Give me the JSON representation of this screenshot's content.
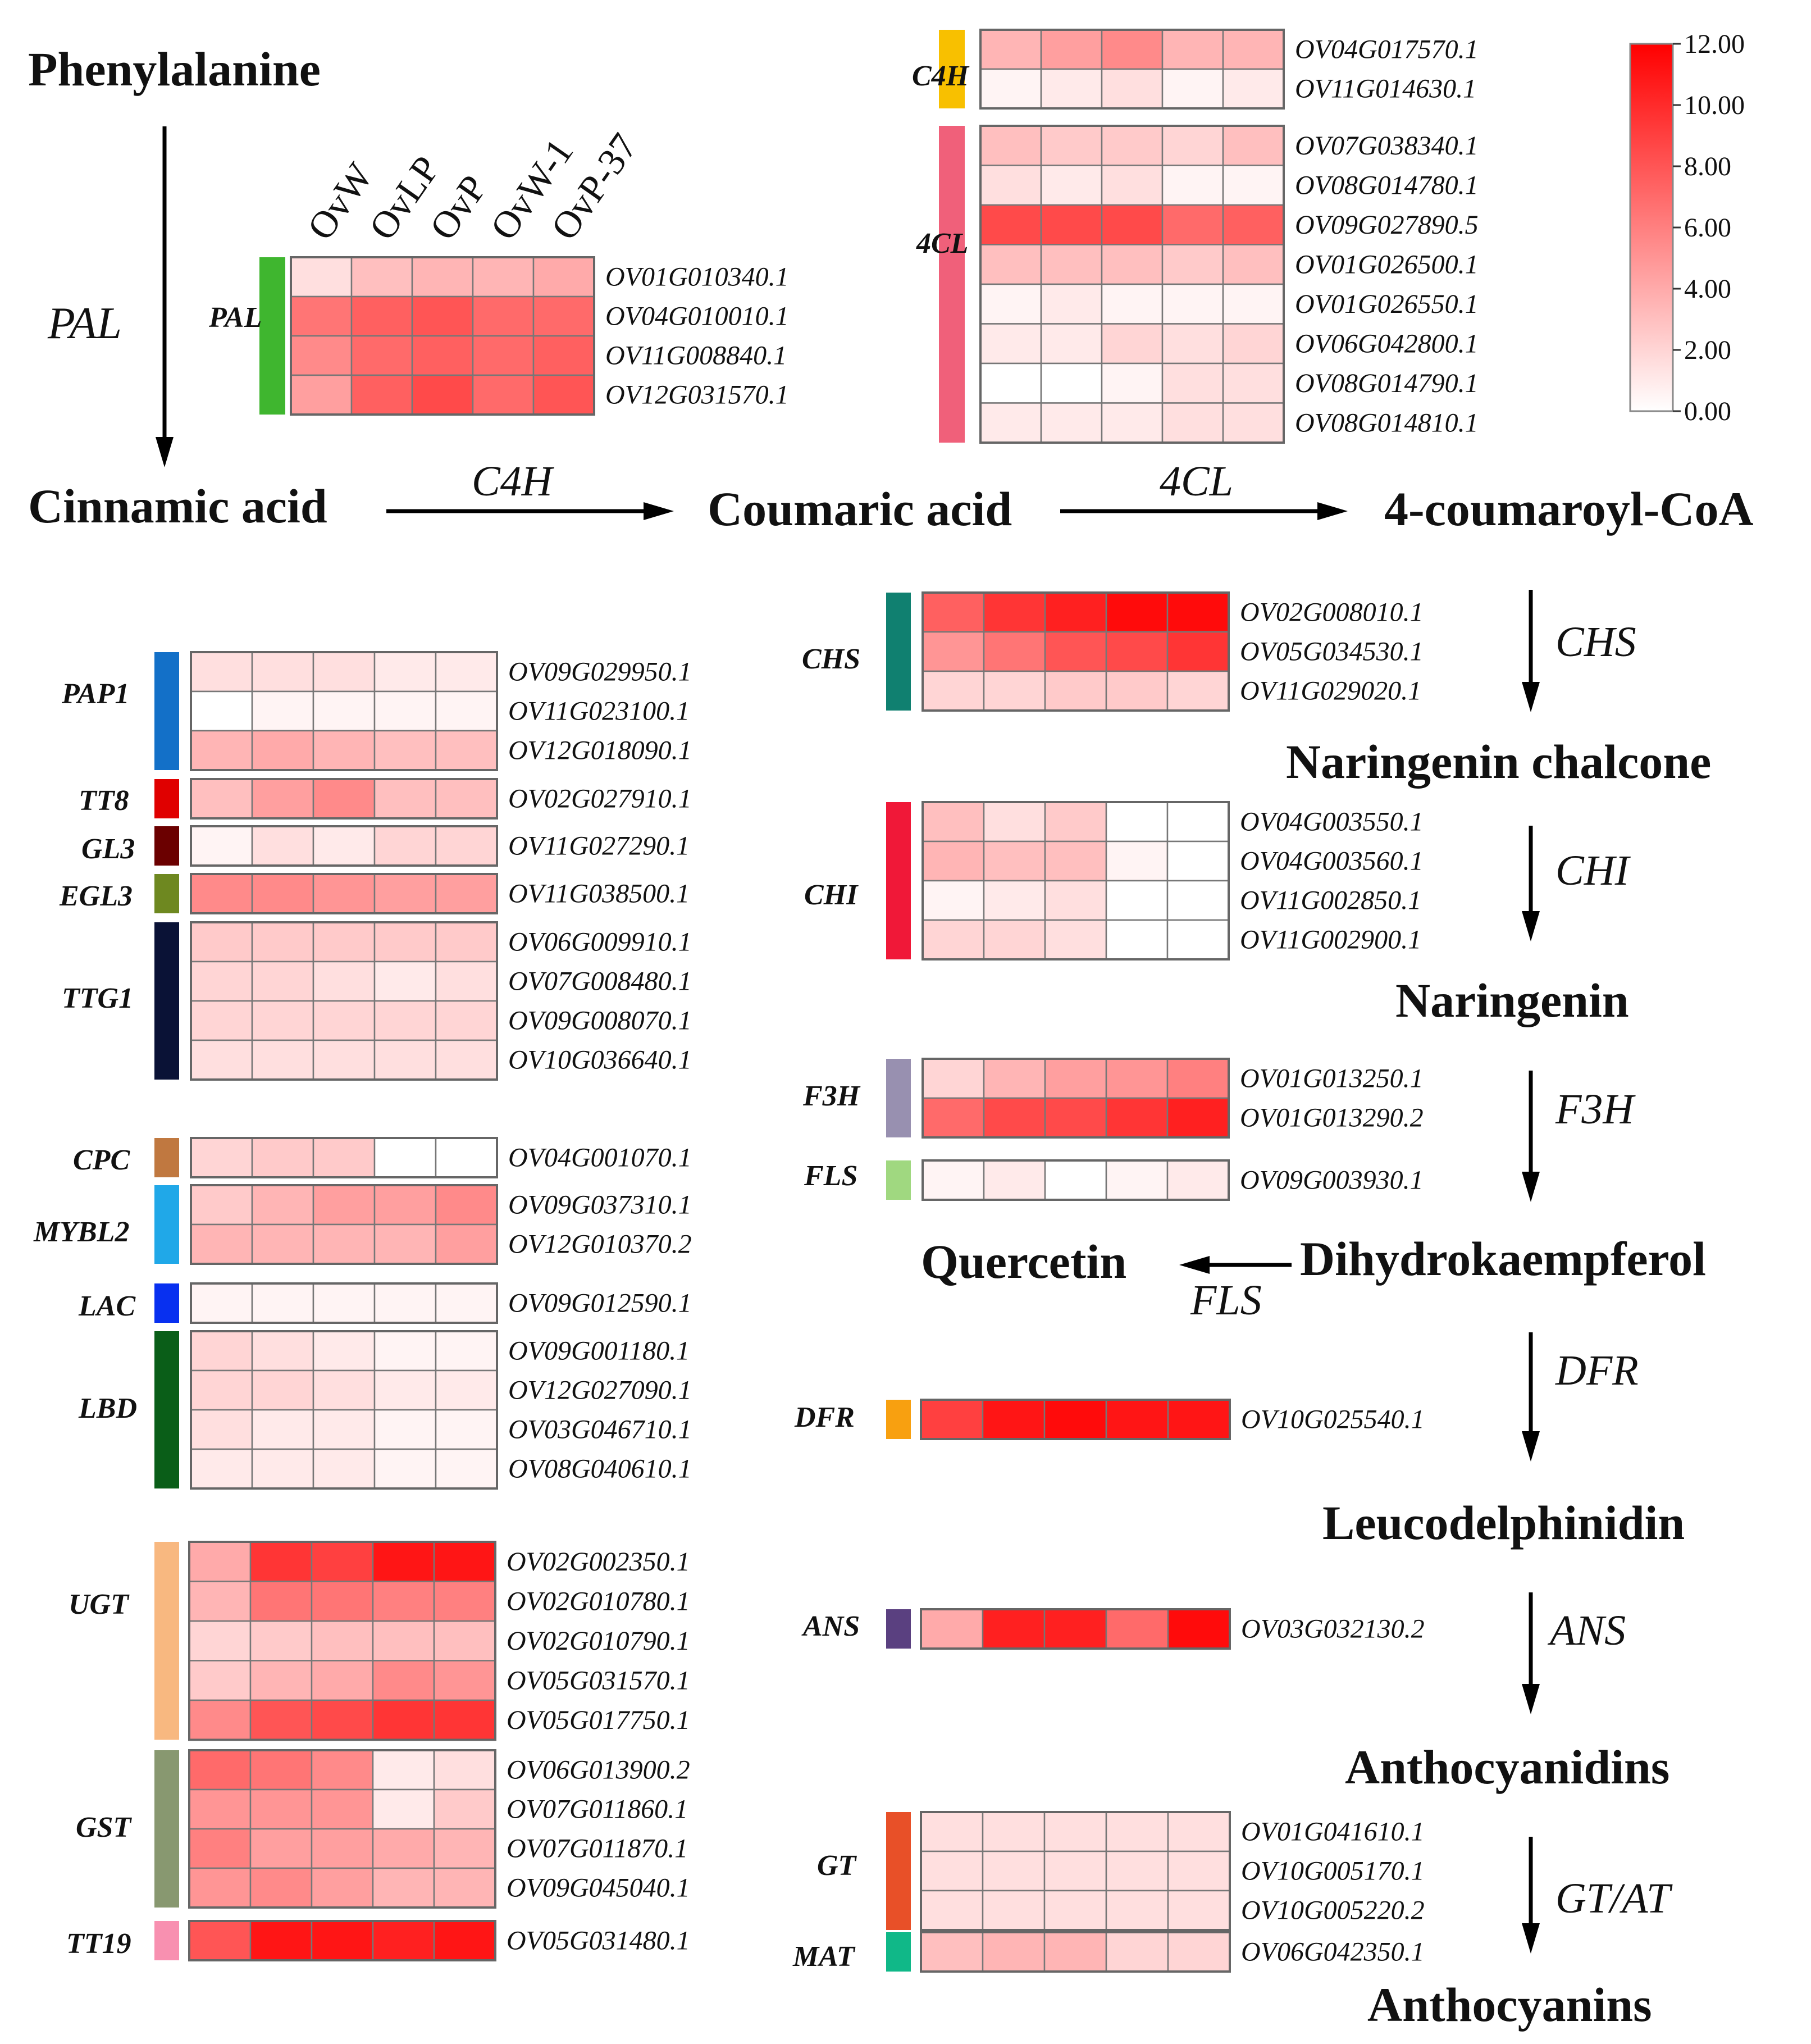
{
  "samples": [
    "OvW",
    "OvLP",
    "OvP",
    "OvW-1",
    "OvP-37"
  ],
  "compounds": {
    "phenylalanine": "Phenylalanine",
    "cinnamic": "Cinnamic acid",
    "coumaric": "Coumaric acid",
    "coumaroyl": "4-coumaroyl-CoA",
    "chalcone": "Naringenin chalcone",
    "naringenin": "Naringenin",
    "dihydro": "Dihydrokaempferol",
    "quercetin": "Quercetin",
    "leuco": "Leucodelphinidin",
    "anthocyanidins": "Anthocyanidins",
    "anthocyanins": "Anthocyanins"
  },
  "steps": {
    "pal": "PAL",
    "c4h": "C4H",
    "cl4": "4CL",
    "chs": "CHS",
    "chi": "CHI",
    "f3h": "F3H",
    "fls": "FLS",
    "dfr": "DFR",
    "ans": "ANS",
    "gtat": "GT/AT"
  },
  "colors": {
    "heat_low": "#ffffff",
    "heat_high": "#ff0000",
    "ans_label": "#ff0000"
  },
  "colorbar": {
    "ticks": [
      "12.00",
      "10.00",
      "8.00",
      "6.00",
      "4.00",
      "2.00",
      "0.00"
    ],
    "min": 0,
    "max": 12
  },
  "chart_data": {
    "type": "heatmap",
    "value_range": [
      0,
      12
    ],
    "groups": [
      {
        "id": "pal",
        "label": "PAL",
        "color": "#3fb62f",
        "genes": [
          {
            "id": "OV01G010340.1",
            "values": [
              1.5,
              3.0,
              3.5,
              3.5,
              4.0
            ]
          },
          {
            "id": "OV04G010010.1",
            "values": [
              6.5,
              7.5,
              8.0,
              7.0,
              7.0
            ]
          },
          {
            "id": "OV11G008840.1",
            "values": [
              5.5,
              7.0,
              7.5,
              7.0,
              7.5
            ]
          },
          {
            "id": "OV12G031570.1",
            "values": [
              4.5,
              7.5,
              8.5,
              7.0,
              8.0
            ]
          }
        ]
      },
      {
        "id": "c4h",
        "label": "C4H",
        "color": "#f8c000",
        "genes": [
          {
            "id": "OV04G017570.1",
            "values": [
              3.5,
              4.5,
              5.5,
              3.5,
              3.5
            ]
          },
          {
            "id": "OV11G014630.1",
            "values": [
              0.5,
              1.0,
              1.5,
              0.5,
              1.0
            ]
          }
        ]
      },
      {
        "id": "cl4",
        "label": "4CL",
        "color": "#f0607a",
        "genes": [
          {
            "id": "OV07G038340.1",
            "values": [
              3.0,
              2.5,
              2.5,
              2.0,
              3.0
            ]
          },
          {
            "id": "OV08G014780.1",
            "values": [
              1.5,
              1.0,
              1.5,
              0.5,
              0.5
            ]
          },
          {
            "id": "OV09G027890.5",
            "values": [
              8.5,
              8.5,
              8.5,
              7.0,
              7.5
            ]
          },
          {
            "id": "OV01G026500.1",
            "values": [
              3.0,
              3.0,
              3.0,
              2.5,
              3.0
            ]
          },
          {
            "id": "OV01G026550.1",
            "values": [
              0.5,
              1.0,
              0.5,
              0.5,
              0.5
            ]
          },
          {
            "id": "OV06G042800.1",
            "values": [
              1.0,
              1.0,
              2.0,
              1.5,
              2.0
            ]
          },
          {
            "id": "OV08G014790.1",
            "values": [
              0.0,
              0.0,
              0.5,
              1.5,
              1.5
            ]
          },
          {
            "id": "OV08G014810.1",
            "values": [
              1.0,
              1.0,
              1.0,
              1.5,
              1.5
            ]
          }
        ]
      },
      {
        "id": "pap1",
        "label": "PAP1",
        "color": "#1370c8",
        "genes": [
          {
            "id": "OV09G029950.1",
            "values": [
              1.5,
              1.5,
              1.5,
              1.0,
              1.0
            ]
          },
          {
            "id": "OV11G023100.1",
            "values": [
              0.0,
              0.5,
              0.5,
              0.5,
              0.5
            ]
          },
          {
            "id": "OV12G018090.1",
            "values": [
              3.5,
              4.0,
              3.5,
              3.0,
              3.0
            ]
          }
        ]
      },
      {
        "id": "tt8",
        "label": "TT8",
        "color": "#e00000",
        "genes": [
          {
            "id": "OV02G027910.1",
            "values": [
              3.0,
              4.5,
              5.5,
              3.0,
              3.0
            ]
          }
        ]
      },
      {
        "id": "gl3",
        "label": "GL3",
        "color": "#6b0000",
        "genes": [
          {
            "id": "OV11G027290.1",
            "values": [
              0.5,
              1.5,
              1.0,
              2.0,
              2.0
            ]
          }
        ]
      },
      {
        "id": "egl3",
        "label": "EGL3",
        "color": "#6e8820",
        "genes": [
          {
            "id": "OV11G038500.1",
            "values": [
              5.5,
              5.5,
              5.0,
              4.5,
              4.5
            ]
          }
        ]
      },
      {
        "id": "ttg1",
        "label": "TTG1",
        "color": "#0a1236",
        "genes": [
          {
            "id": "OV06G009910.1",
            "values": [
              2.5,
              2.5,
              2.5,
              2.5,
              2.5
            ]
          },
          {
            "id": "OV07G008480.1",
            "values": [
              2.0,
              2.0,
              1.5,
              1.0,
              1.5
            ]
          },
          {
            "id": "OV09G008070.1",
            "values": [
              2.0,
              2.0,
              2.0,
              2.0,
              2.0
            ]
          },
          {
            "id": "OV10G036640.1",
            "values": [
              1.5,
              1.5,
              1.5,
              1.5,
              1.5
            ]
          }
        ]
      },
      {
        "id": "cpc",
        "label": "CPC",
        "color": "#c07840",
        "genes": [
          {
            "id": "OV04G001070.1",
            "values": [
              2.0,
              2.5,
              2.5,
              0.0,
              0.0
            ]
          }
        ]
      },
      {
        "id": "mybl2",
        "label": "MYBL2",
        "color": "#20a8e8",
        "genes": [
          {
            "id": "OV09G037310.1",
            "values": [
              2.5,
              3.5,
              4.5,
              4.5,
              5.5
            ]
          },
          {
            "id": "OV12G010370.2",
            "values": [
              3.5,
              3.5,
              3.5,
              3.5,
              4.5
            ]
          }
        ]
      },
      {
        "id": "lac",
        "label": "LAC",
        "color": "#0830f0",
        "genes": [
          {
            "id": "OV09G012590.1",
            "values": [
              0.5,
              0.5,
              0.5,
              0.5,
              0.5
            ]
          }
        ]
      },
      {
        "id": "lbd",
        "label": "LBD",
        "color": "#0a5e18",
        "genes": [
          {
            "id": "OV09G001180.1",
            "values": [
              2.0,
              1.5,
              1.0,
              0.5,
              0.5
            ]
          },
          {
            "id": "OV12G027090.1",
            "values": [
              2.0,
              2.0,
              1.5,
              1.0,
              1.0
            ]
          },
          {
            "id": "OV03G046710.1",
            "values": [
              1.5,
              1.0,
              1.0,
              0.5,
              0.5
            ]
          },
          {
            "id": "OV08G040610.1",
            "values": [
              1.0,
              1.0,
              1.0,
              0.5,
              0.5
            ]
          }
        ]
      },
      {
        "id": "ugt",
        "label": "UGT",
        "color": "#f8b880",
        "genes": [
          {
            "id": "OV02G002350.1",
            "values": [
              4.0,
              9.5,
              9.0,
              11.0,
              11.0
            ]
          },
          {
            "id": "OV02G010780.1",
            "values": [
              3.5,
              6.5,
              6.5,
              6.0,
              6.0
            ]
          },
          {
            "id": "OV02G010790.1",
            "values": [
              2.0,
              2.5,
              3.0,
              3.0,
              3.0
            ]
          },
          {
            "id": "OV05G031570.1",
            "values": [
              2.5,
              3.5,
              4.0,
              5.5,
              5.0
            ]
          },
          {
            "id": "OV05G017750.1",
            "values": [
              5.5,
              8.0,
              8.5,
              9.5,
              9.5
            ]
          }
        ]
      },
      {
        "id": "gst",
        "label": "GST",
        "color": "#889870",
        "genes": [
          {
            "id": "OV06G013900.2",
            "values": [
              7.0,
              6.5,
              5.5,
              1.0,
              1.5
            ]
          },
          {
            "id": "OV07G011860.1",
            "values": [
              5.0,
              5.0,
              5.0,
              1.0,
              2.5
            ]
          },
          {
            "id": "OV07G011870.1",
            "values": [
              6.0,
              4.5,
              4.5,
              4.0,
              3.5
            ]
          },
          {
            "id": "OV09G045040.1",
            "values": [
              5.0,
              5.5,
              4.5,
              3.5,
              3.5
            ]
          }
        ]
      },
      {
        "id": "tt19",
        "label": "TT19",
        "color": "#f890b0",
        "genes": [
          {
            "id": "OV05G031480.1",
            "values": [
              8.0,
              11.0,
              11.0,
              10.5,
              11.0
            ]
          }
        ]
      },
      {
        "id": "chs",
        "label": "CHS",
        "color": "#108070",
        "genes": [
          {
            "id": "OV02G008010.1",
            "values": [
              7.5,
              9.5,
              10.5,
              11.5,
              11.5
            ]
          },
          {
            "id": "OV05G034530.1",
            "values": [
              5.0,
              6.5,
              8.0,
              8.5,
              9.5
            ]
          },
          {
            "id": "OV11G029020.1",
            "values": [
              2.0,
              2.0,
              2.5,
              2.5,
              2.0
            ]
          }
        ]
      },
      {
        "id": "chi",
        "label": "CHI",
        "color": "#f01838",
        "genes": [
          {
            "id": "OV04G003550.1",
            "values": [
              3.0,
              1.5,
              2.5,
              0.0,
              0.0
            ]
          },
          {
            "id": "OV04G003560.1",
            "values": [
              3.5,
              3.0,
              3.0,
              0.5,
              0.0
            ]
          },
          {
            "id": "OV11G002850.1",
            "values": [
              0.5,
              1.0,
              1.5,
              0.0,
              0.0
            ]
          },
          {
            "id": "OV11G002900.1",
            "values": [
              2.0,
              2.0,
              1.5,
              0.0,
              0.0
            ]
          }
        ]
      },
      {
        "id": "f3h",
        "label": "F3H",
        "color": "#9890b0",
        "genes": [
          {
            "id": "OV01G013250.1",
            "values": [
              2.0,
              3.5,
              4.5,
              5.0,
              6.0
            ]
          },
          {
            "id": "OV01G013290.2",
            "values": [
              7.0,
              8.5,
              8.5,
              9.5,
              10.5
            ]
          }
        ]
      },
      {
        "id": "fls",
        "label": "FLS",
        "color": "#a0d880",
        "genes": [
          {
            "id": "OV09G003930.1",
            "values": [
              0.5,
              1.0,
              0.0,
              0.5,
              1.0
            ]
          }
        ]
      },
      {
        "id": "dfr",
        "label": "DFR",
        "color": "#f8a010",
        "genes": [
          {
            "id": "OV10G025540.1",
            "values": [
              9.0,
              11.0,
              11.5,
              11.0,
              11.0
            ]
          }
        ]
      },
      {
        "id": "ans",
        "label": "ANS",
        "color": "#5a4080",
        "genes": [
          {
            "id": "OV03G032130.2",
            "values": [
              4.0,
              10.5,
              10.5,
              7.0,
              11.5
            ]
          }
        ]
      },
      {
        "id": "gt",
        "label": "GT",
        "color": "#e85028",
        "genes": [
          {
            "id": "OV01G041610.1",
            "values": [
              1.5,
              1.5,
              1.5,
              1.5,
              1.5
            ]
          },
          {
            "id": "OV10G005170.1",
            "values": [
              1.5,
              1.5,
              1.5,
              1.5,
              1.5
            ]
          },
          {
            "id": "OV10G005220.2",
            "values": [
              1.5,
              1.5,
              1.5,
              1.5,
              1.5
            ]
          }
        ]
      },
      {
        "id": "mat",
        "label": "MAT",
        "color": "#10b888",
        "genes": [
          {
            "id": "OV06G042350.1",
            "values": [
              3.0,
              3.5,
              3.5,
              2.0,
              2.0
            ]
          }
        ]
      }
    ]
  }
}
